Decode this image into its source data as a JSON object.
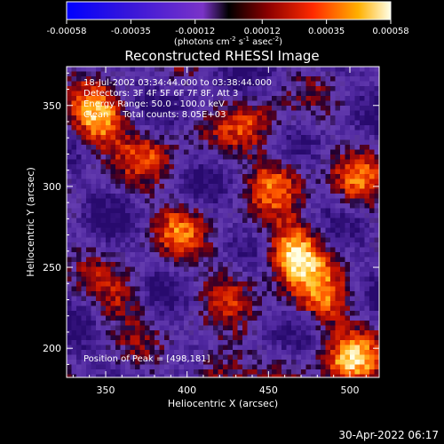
{
  "chart_data": {
    "type": "heatmap",
    "title": "Reconstructed RHESSI Image",
    "xlabel": "Heliocentric X (arcsec)",
    "ylabel": "Heliocentric Y (arcsec)",
    "xlim": [
      326,
      518
    ],
    "ylim": [
      182,
      374
    ],
    "xticks": [
      350,
      400,
      450,
      500
    ],
    "yticks": [
      200,
      250,
      300,
      350
    ],
    "colorbar": {
      "ticks": [
        "-0.00058",
        "-0.00035",
        "-0.00012",
        "0.00012",
        "0.00035",
        "0.00058"
      ],
      "range": [
        -0.00058,
        0.00058
      ],
      "label_main": "(photons cm",
      "label_exp1": "-2",
      "label_mid": " s",
      "label_exp2": "-1",
      "label_tail": " asec",
      "label_exp3": "-2",
      "label_end": ")"
    },
    "annotations": {
      "time_range": "18-Jul-2002 03:34:44.000 to 03:38:44.000",
      "detectors": "Detectors: 3F 4F 5F 6F 7F 8F, Att 3",
      "energy": "Energy Range: 50.0 - 100.0 keV",
      "clean": "Clean     Total counts: 8.05E+03",
      "peak": "Position of Peak = [498,181]"
    },
    "hotspots": [
      {
        "x": 466,
        "y": 258,
        "amp": 1.0
      },
      {
        "x": 345,
        "y": 340,
        "amp": 0.85
      },
      {
        "x": 482,
        "y": 228,
        "amp": 0.6
      },
      {
        "x": 455,
        "y": 305,
        "amp": 0.55
      },
      {
        "x": 500,
        "y": 190,
        "amp": 0.8
      },
      {
        "x": 418,
        "y": 186,
        "amp": 0.6
      },
      {
        "x": 380,
        "y": 320,
        "amp": 0.4
      },
      {
        "x": 395,
        "y": 275,
        "amp": 0.45
      },
      {
        "x": 360,
        "y": 230,
        "amp": 0.4
      },
      {
        "x": 440,
        "y": 340,
        "amp": 0.45
      },
      {
        "x": 505,
        "y": 300,
        "amp": 0.5
      },
      {
        "x": 425,
        "y": 240,
        "amp": 0.35
      }
    ]
  },
  "footer": {
    "timestamp": "30-Apr-2022 06:17"
  }
}
